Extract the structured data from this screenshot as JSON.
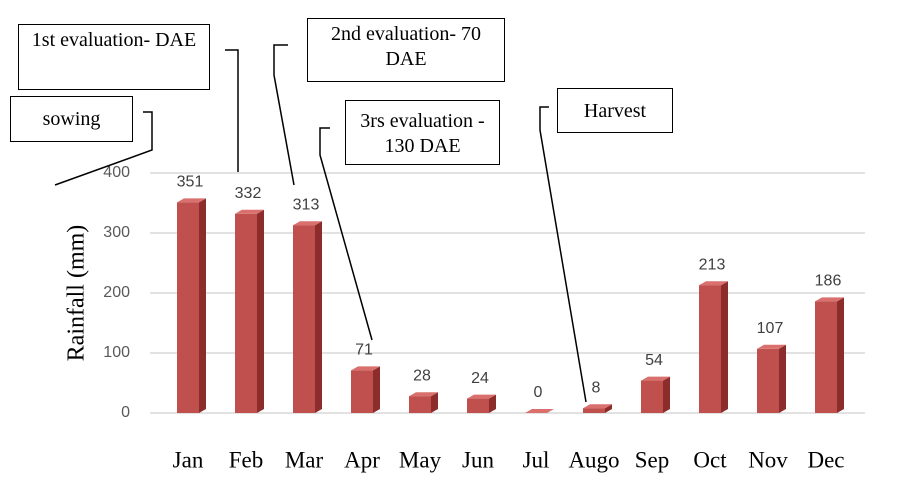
{
  "chart_data": {
    "type": "bar",
    "y_label": "Rainfall (mm)",
    "categories": [
      "Jan",
      "Feb",
      "Mar",
      "Apr",
      "May",
      "Jun",
      "Jul",
      "Augo",
      "Sep",
      "Oct",
      "Nov",
      "Dec"
    ],
    "values": [
      351,
      332,
      313,
      71,
      28,
      24,
      0,
      8,
      54,
      213,
      107,
      186
    ],
    "color": "#c0504d",
    "ylim": [
      0,
      400
    ],
    "yticks": [
      0,
      100,
      200,
      300,
      400
    ],
    "grid": true,
    "annotations": [
      "1st evaluation- DAE",
      "2nd evaluation- 70 DAE",
      "3rs evaluation - 130 DAE",
      "Harvest",
      "sowing"
    ]
  }
}
